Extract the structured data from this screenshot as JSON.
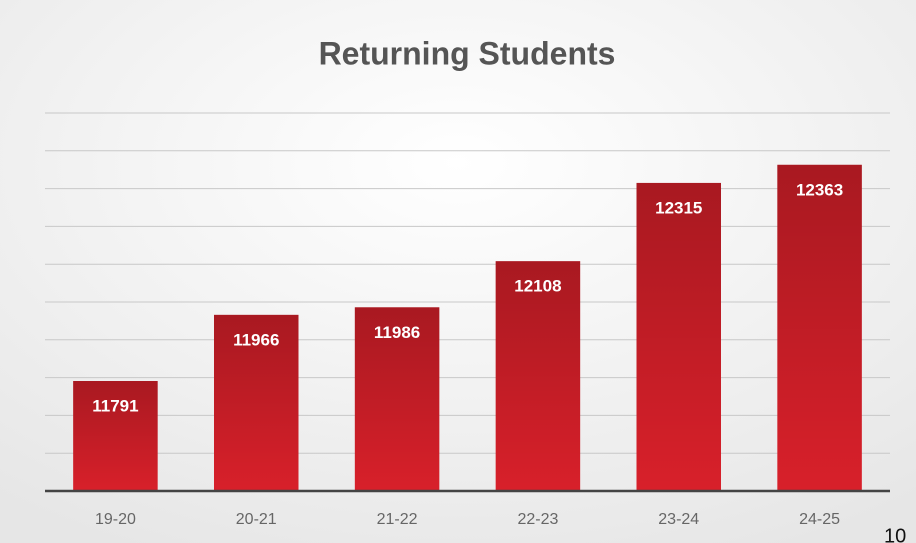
{
  "chart_data": {
    "type": "bar",
    "title": "Returning Students",
    "categories": [
      "19-20",
      "20-21",
      "21-22",
      "22-23",
      "23-24",
      "24-25"
    ],
    "values": [
      11791,
      11966,
      11986,
      12108,
      12315,
      12363
    ],
    "color": "#d8202a",
    "ylim": [
      11500,
      12500
    ],
    "yticks": [
      11600,
      11700,
      11800,
      11900,
      12000,
      12100,
      12200,
      12300,
      12400,
      12500
    ],
    "grid": true
  },
  "page_number": "10"
}
